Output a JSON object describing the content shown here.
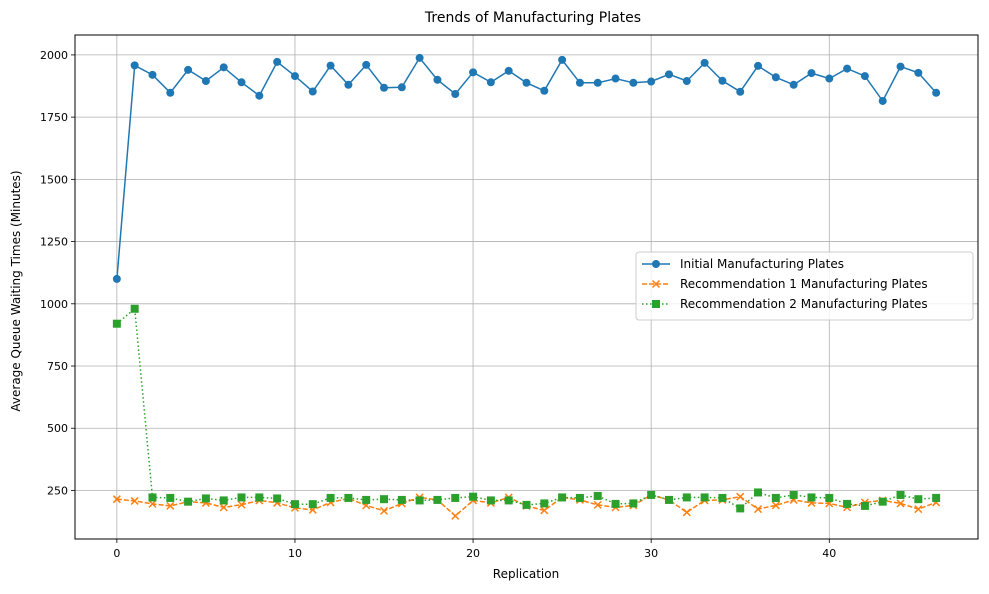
{
  "chart_data": {
    "type": "line",
    "title": "Trends of Manufacturing Plates",
    "xlabel": "Replication",
    "ylabel": "Average Queue Waiting Times (Minutes)",
    "xlim": [
      -2.35,
      48.35
    ],
    "ylim": [
      55,
      2080
    ],
    "xticks": [
      0,
      10,
      20,
      30,
      40
    ],
    "yticks": [
      250,
      500,
      750,
      1000,
      1250,
      1500,
      1750,
      2000
    ],
    "grid": true,
    "legend_position": "center-right",
    "x": [
      0,
      1,
      2,
      3,
      4,
      5,
      6,
      7,
      8,
      9,
      10,
      11,
      12,
      13,
      14,
      15,
      16,
      17,
      18,
      19,
      20,
      21,
      22,
      23,
      24,
      25,
      26,
      27,
      28,
      29,
      30,
      31,
      32,
      33,
      34,
      35,
      36,
      37,
      38,
      39,
      40,
      41,
      42,
      43,
      44,
      45,
      46
    ],
    "series": [
      {
        "name": "Initial Manufacturing Plates",
        "color": "#1f77b4",
        "marker": "circle",
        "linestyle": "solid",
        "values": [
          1100,
          1958,
          1920,
          1848,
          1940,
          1895,
          1950,
          1890,
          1836,
          1972,
          1915,
          1853,
          1957,
          1880,
          1960,
          1868,
          1870,
          1988,
          1900,
          1843,
          1930,
          1890,
          1936,
          1888,
          1856,
          1980,
          1888,
          1888,
          1905,
          1888,
          1893,
          1922,
          1895,
          1968,
          1896,
          1852,
          1956,
          1910,
          1880,
          1927,
          1905,
          1945,
          1915,
          1815,
          1953,
          1928,
          1848
        ]
      },
      {
        "name": "Recommendation 1 Manufacturing Plates",
        "color": "#ff7f0e",
        "marker": "x",
        "linestyle": "dashed",
        "values": [
          215,
          208,
          196,
          188,
          205,
          200,
          182,
          193,
          210,
          200,
          180,
          172,
          202,
          218,
          190,
          168,
          198,
          222,
          212,
          148,
          210,
          200,
          222,
          188,
          170,
          222,
          212,
          192,
          182,
          190,
          232,
          212,
          162,
          210,
          212,
          225,
          175,
          190,
          212,
          200,
          198,
          182,
          202,
          210,
          198,
          175,
          202
        ]
      },
      {
        "name": "Recommendation 2 Manufacturing Plates",
        "color": "#2ca02c",
        "marker": "square",
        "linestyle": "dotted",
        "values": [
          920,
          980,
          222,
          220,
          205,
          218,
          210,
          222,
          222,
          218,
          195,
          195,
          220,
          220,
          212,
          215,
          212,
          210,
          212,
          220,
          225,
          210,
          210,
          192,
          198,
          222,
          220,
          228,
          196,
          198,
          232,
          212,
          222,
          222,
          220,
          178,
          242,
          220,
          232,
          222,
          220,
          196,
          188,
          205,
          232,
          215,
          220
        ]
      }
    ]
  }
}
